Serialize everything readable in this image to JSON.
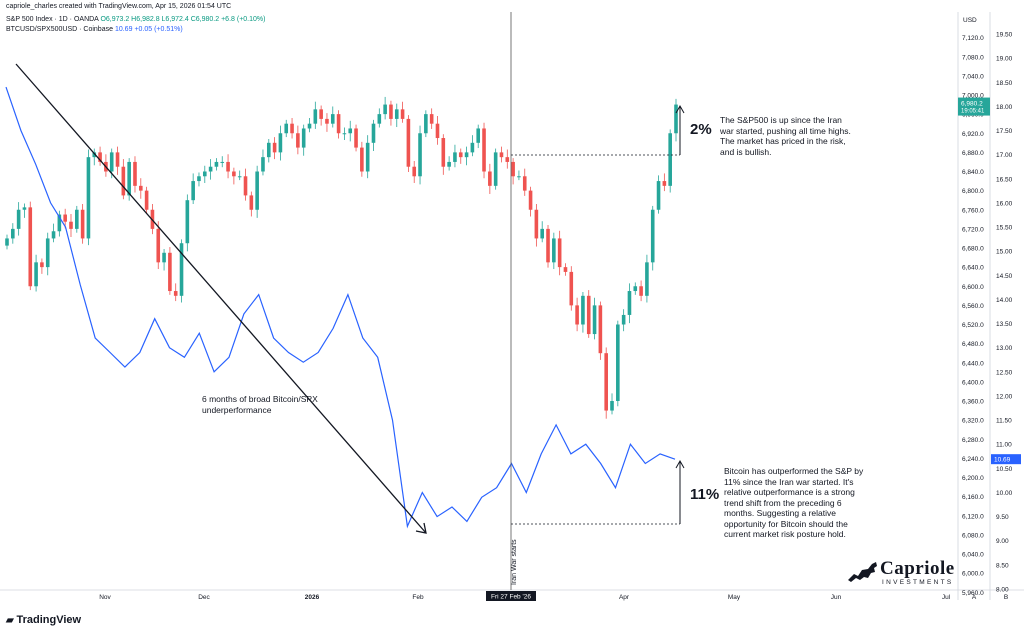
{
  "header": {
    "credit": "capriole_charles created with TradingView.com, Apr 15, 2026 01:54 UTC",
    "spx_name": "S&P 500 Index · 1D · OANDA",
    "spx_values": "O6,973.2 H6,982.8 L6,972.4 C6,980.2",
    "spx_change": "+6.8 (+0.10%)",
    "btc_name": "BTCUSD/SPX500USD · Coinbase",
    "btc_value": "10.69",
    "btc_change": "+0.05 (+0.51%)"
  },
  "axis": {
    "currency": "USD",
    "left_ticks": [
      "7,120.0",
      "7,080.0",
      "7,040.0",
      "7,000.0",
      "6,960.0",
      "6,920.0",
      "6,880.0",
      "6,840.0",
      "6,800.0",
      "6,760.0",
      "6,720.0",
      "6,680.0",
      "6,640.0",
      "6,600.0",
      "6,560.0",
      "6,520.0",
      "6,480.0",
      "6,440.0",
      "6,400.0",
      "6,360.0",
      "6,320.0",
      "6,280.0",
      "6,240.0",
      "6,200.0",
      "6,160.0",
      "6,120.0",
      "6,080.0",
      "6,040.0",
      "6,000.0",
      "5,960.0"
    ],
    "right_ticks": [
      "19.50",
      "19.00",
      "18.50",
      "18.00",
      "17.50",
      "17.00",
      "16.50",
      "16.00",
      "15.50",
      "15.00",
      "14.50",
      "14.00",
      "13.50",
      "13.00",
      "12.50",
      "12.00",
      "11.50",
      "11.00",
      "10.50",
      "10.00",
      "9.50",
      "9.00",
      "8.50",
      "8.00"
    ],
    "price_label": "6,980.2",
    "price_countdown": "19:05:41",
    "btc_label": "10.69",
    "months": [
      "Nov",
      "Dec",
      "2026",
      "Feb",
      "Apr",
      "May",
      "Jun",
      "Jul"
    ],
    "date_label": "Fri 27 Feb '26",
    "corner_a": "A",
    "corner_b": "B"
  },
  "annotations": {
    "iran_war": "Iran War starts",
    "underperformance": "6 months of broad Bitcoin/SPX underperformance",
    "spx_pct": "2%",
    "spx_note": "The S&P500 is up since the Iran war started, pushing all time highs. The market has priced in the risk, and is bullish.",
    "btc_pct": "11%",
    "btc_note": "Bitcoin has outperformed the S&P by 11% since the Iran war started. It's relative outperformance is a strong trend shift from the preceding 6 months. Suggesting a relative opportunity for Bitcoin should the current market risk posture hold."
  },
  "brand": {
    "tradingview": "TradingView",
    "capriole": "Capriole",
    "investments": "INVESTMENTS"
  },
  "colors": {
    "up": "#26a69a",
    "down": "#ef5350",
    "ratio_line": "#2962ff",
    "price_tag": "#26a69a",
    "btc_tag": "#2962ff"
  },
  "chart_data": {
    "type": "candlestick+line",
    "date_range": [
      "2025-10-01",
      "2026-04-14"
    ],
    "spx_candles_close": [
      6700,
      6720,
      6760,
      6765,
      6600,
      6650,
      6640,
      6700,
      6715,
      6750,
      6735,
      6720,
      6760,
      6700,
      6870,
      6880,
      6860,
      6840,
      6880,
      6850,
      6790,
      6860,
      6810,
      6800,
      6760,
      6720,
      6650,
      6670,
      6590,
      6580,
      6690,
      6780,
      6820,
      6830,
      6840,
      6850,
      6860,
      6860,
      6840,
      6830,
      6830,
      6790,
      6760,
      6840,
      6870,
      6900,
      6880,
      6920,
      6940,
      6920,
      6890,
      6930,
      6940,
      6970,
      6950,
      6940,
      6960,
      6920,
      6920,
      6930,
      6890,
      6840,
      6900,
      6940,
      6960,
      6980,
      6950,
      6970,
      6950,
      6850,
      6830,
      6920,
      6960,
      6940,
      6910,
      6850,
      6860,
      6880,
      6870,
      6880,
      6900,
      6930,
      6840,
      6810,
      6880,
      6870,
      6860,
      6830,
      6830,
      6800,
      6760,
      6700,
      6720,
      6650,
      6700,
      6640,
      6630,
      6560,
      6520,
      6580,
      6500,
      6560,
      6460,
      6340,
      6360,
      6520,
      6540,
      6590,
      6600,
      6580,
      6650,
      6760,
      6820,
      6810,
      6920,
      6980
    ],
    "btc_spx_ratio_approx": [
      18.4,
      17.5,
      16.8,
      16.0,
      15.5,
      14.3,
      13.2,
      12.9,
      12.6,
      12.9,
      13.6,
      13.0,
      12.8,
      13.3,
      12.5,
      12.8,
      13.7,
      14.1,
      13.2,
      12.9,
      12.7,
      12.9,
      13.4,
      14.1,
      13.2,
      12.8,
      11.5,
      9.3,
      10.0,
      9.5,
      9.7,
      9.4,
      9.9,
      10.1,
      10.6,
      10.0,
      10.8,
      11.4,
      10.8,
      11.0,
      10.6,
      10.1,
      11.0,
      10.6,
      10.8,
      10.69
    ],
    "iran_war_start": "2026-02-27"
  }
}
